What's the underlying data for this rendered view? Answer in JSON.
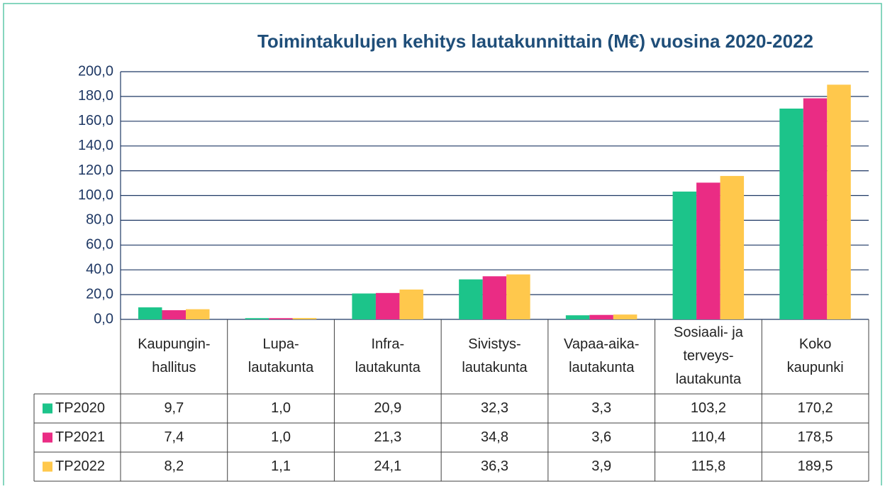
{
  "chart_data": {
    "type": "bar",
    "title": "Toimintakulujen kehitys lautakunnittain (M€) vuosina 2020-2022",
    "categories": [
      [
        "Kaupungin-",
        "hallitus"
      ],
      [
        "Lupa-",
        "lautakunta"
      ],
      [
        "Infra-",
        "lautakunta"
      ],
      [
        "Sivistys-",
        "lautakunta"
      ],
      [
        "Vapaa-aika-",
        "lautakunta"
      ],
      [
        "Sosiaali- ja",
        "terveys-",
        "lautakunta"
      ],
      [
        "Koko",
        "kaupunki"
      ]
    ],
    "series": [
      {
        "name": "TP2020",
        "color": "#1cc48a",
        "values": [
          9.7,
          1.0,
          20.9,
          32.3,
          3.3,
          103.2,
          170.2
        ],
        "value_labels": [
          "9,7",
          "1,0",
          "20,9",
          "32,3",
          "3,3",
          "103,2",
          "170,2"
        ]
      },
      {
        "name": "TP2021",
        "color": "#ea2c84",
        "values": [
          7.4,
          1.0,
          21.3,
          34.8,
          3.6,
          110.4,
          178.5
        ],
        "value_labels": [
          "7,4",
          "1,0",
          "21,3",
          "34,8",
          "3,6",
          "110,4",
          "178,5"
        ]
      },
      {
        "name": "TP2022",
        "color": "#ffc84c",
        "values": [
          8.2,
          1.1,
          24.1,
          36.3,
          3.9,
          115.8,
          189.5
        ],
        "value_labels": [
          "8,2",
          "1,1",
          "24,1",
          "36,3",
          "3,9",
          "115,8",
          "189,5"
        ]
      }
    ],
    "ylim": [
      0,
      200
    ],
    "yticks": [
      {
        "value": 0,
        "label": "0,0"
      },
      {
        "value": 20,
        "label": "20,0"
      },
      {
        "value": 40,
        "label": "40,0"
      },
      {
        "value": 60,
        "label": "60,0"
      },
      {
        "value": 80,
        "label": "80,0"
      },
      {
        "value": 100,
        "label": "100,0"
      },
      {
        "value": 120,
        "label": "120,0"
      },
      {
        "value": 140,
        "label": "140,0"
      },
      {
        "value": 160,
        "label": "160,0"
      },
      {
        "value": 180,
        "label": "180,0"
      },
      {
        "value": 200,
        "label": "200,0"
      }
    ],
    "grid": true
  }
}
